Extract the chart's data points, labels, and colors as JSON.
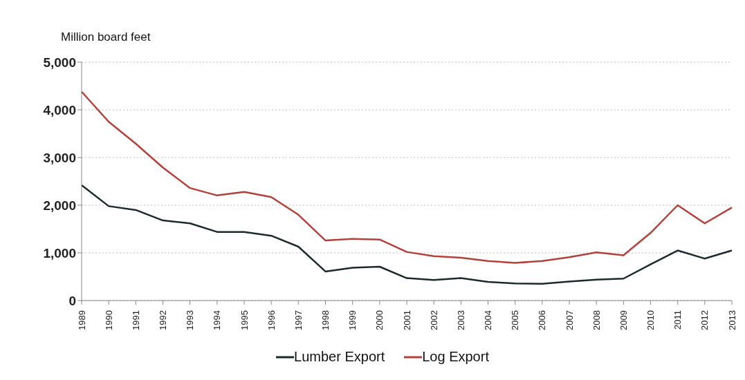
{
  "chart_data": {
    "type": "line",
    "ylabel": "Million board feet",
    "categories": [
      "1989",
      "1990",
      "1991",
      "1992",
      "1993",
      "1994",
      "1995",
      "1996",
      "1997",
      "1998",
      "1999",
      "2000",
      "2001",
      "2002",
      "2003",
      "2004",
      "2005",
      "2006",
      "2007",
      "2008",
      "2009",
      "2010",
      "2011",
      "2012",
      "2013"
    ],
    "series": [
      {
        "name": "Lumber Export",
        "color": "#1b2a2c",
        "values": [
          2420,
          1980,
          1900,
          1680,
          1620,
          1440,
          1440,
          1360,
          1130,
          610,
          690,
          710,
          470,
          430,
          470,
          390,
          360,
          350,
          400,
          440,
          460,
          760,
          1050,
          880,
          1050
        ]
      },
      {
        "name": "Log Export",
        "color": "#b5403a",
        "values": [
          4380,
          3750,
          3290,
          2790,
          2360,
          2205,
          2280,
          2170,
          1800,
          1260,
          1295,
          1280,
          1020,
          930,
          900,
          830,
          790,
          830,
          910,
          1010,
          950,
          1420,
          2000,
          1620,
          1950
        ]
      }
    ],
    "ylim": [
      0,
      5000
    ],
    "yticks": [
      {
        "value": 0,
        "label": "0"
      },
      {
        "value": 1000,
        "label": "1,000"
      },
      {
        "value": 2000,
        "label": "2,000"
      },
      {
        "value": 3000,
        "label": "3,000"
      },
      {
        "value": 4000,
        "label": "4,000"
      },
      {
        "value": 5000,
        "label": "5,000"
      }
    ],
    "grid": "y",
    "legend": "bottom",
    "marker": "none",
    "line_style": "solid"
  }
}
